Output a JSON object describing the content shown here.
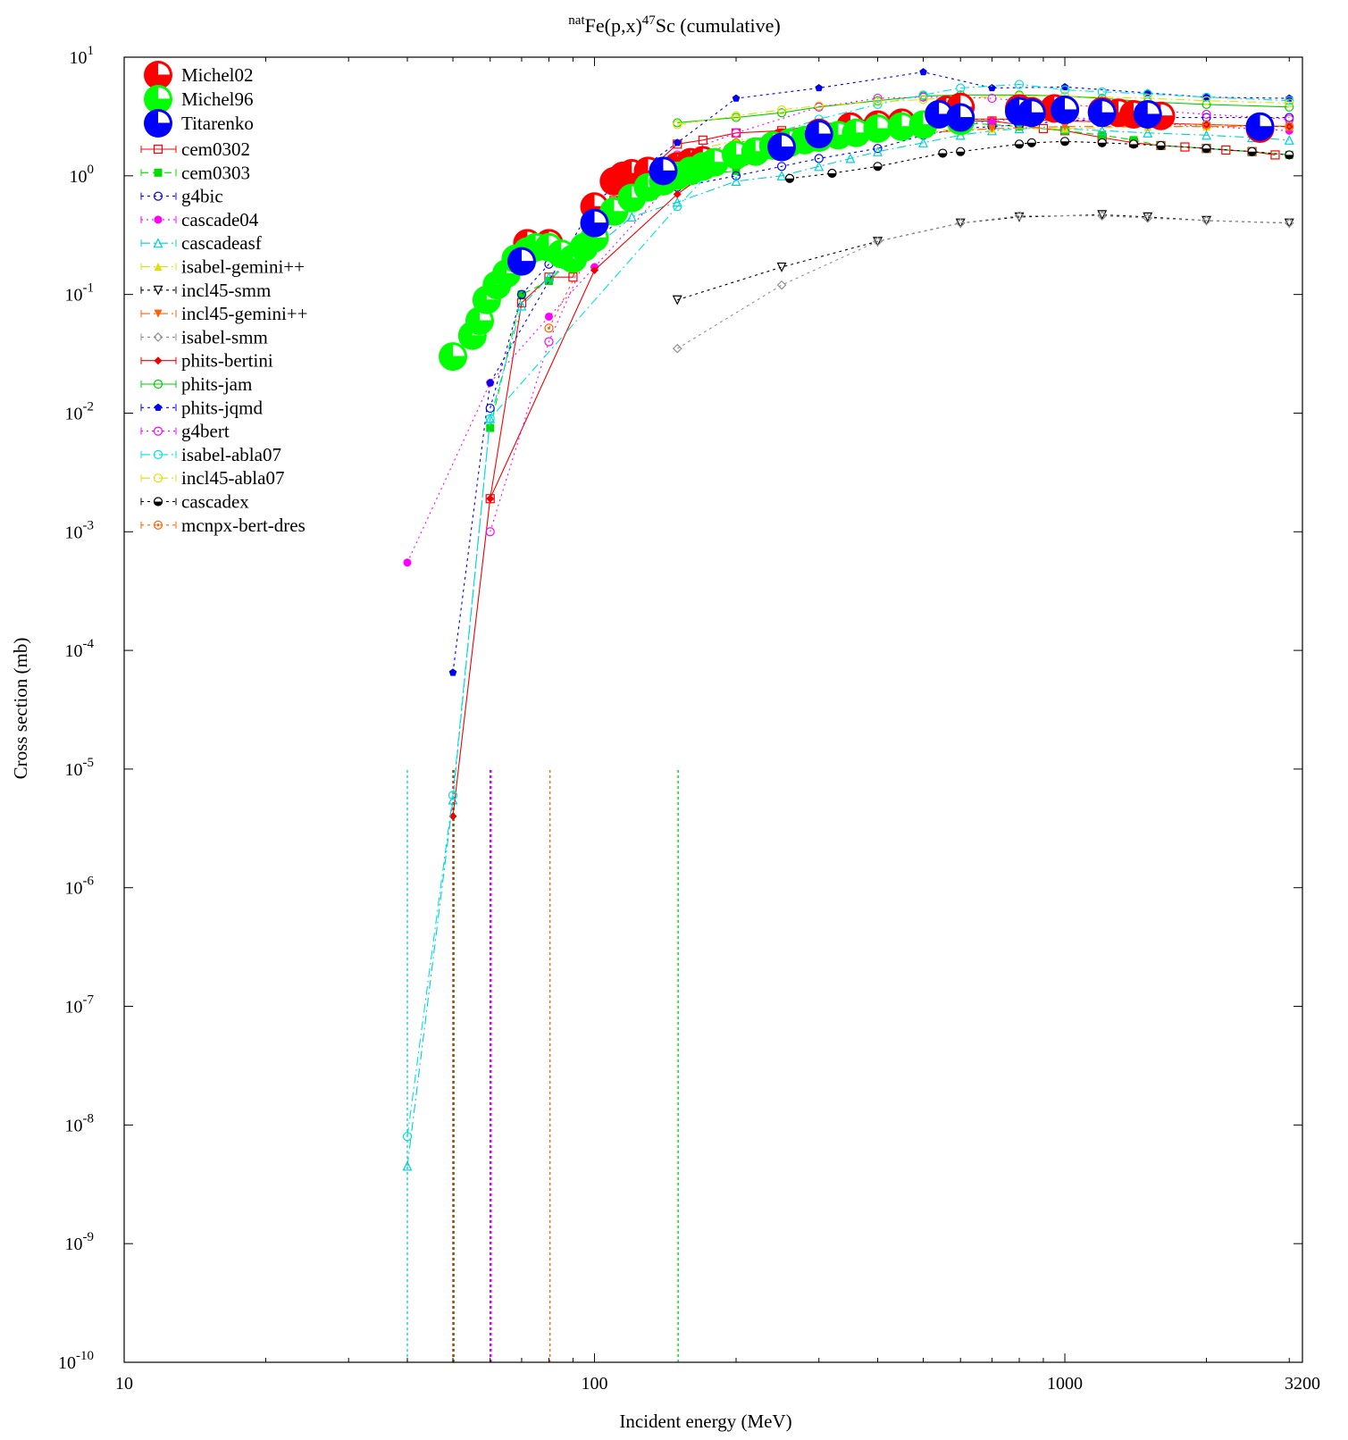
{
  "chart_data": {
    "type": "scatter",
    "title": {
      "pre": "nat",
      "main1": "Fe(p,x)",
      "sup": "47",
      "main2": "Sc (cumulative)"
    },
    "xlabel": "Incident energy (MeV)",
    "ylabel": "Cross section (mb)",
    "x_scale": "log",
    "y_scale": "log",
    "xlim": [
      10,
      3200
    ],
    "ylim": [
      1e-10,
      10
    ],
    "x_ticks": [
      {
        "value": 10,
        "label": "10"
      },
      {
        "value": 100,
        "label": "100"
      },
      {
        "value": 1000,
        "label": "1000"
      },
      {
        "value": 3200,
        "label": "3200"
      }
    ],
    "y_ticks": [
      {
        "value": 1e-10,
        "base": "10",
        "exp": "-10"
      },
      {
        "value": 1e-09,
        "base": "10",
        "exp": "-9"
      },
      {
        "value": 1e-08,
        "base": "10",
        "exp": "-8"
      },
      {
        "value": 1e-07,
        "base": "10",
        "exp": "-7"
      },
      {
        "value": 1e-06,
        "base": "10",
        "exp": "-6"
      },
      {
        "value": 1e-05,
        "base": "10",
        "exp": "-5"
      },
      {
        "value": 0.0001,
        "base": "10",
        "exp": "-4"
      },
      {
        "value": 0.001,
        "base": "10",
        "exp": "-3"
      },
      {
        "value": 0.01,
        "base": "10",
        "exp": "-2"
      },
      {
        "value": 0.1,
        "base": "10",
        "exp": "-1"
      },
      {
        "value": 1,
        "base": "10",
        "exp": "0"
      },
      {
        "value": 10,
        "base": "10",
        "exp": "1"
      }
    ],
    "grid": false,
    "legend_position": "top-left",
    "experimental": [
      {
        "name": "Michel02",
        "color": "#ff0000",
        "points": [
          [
            72,
            0.27
          ],
          [
            80,
            0.27
          ],
          [
            100,
            0.55
          ],
          [
            110,
            0.9
          ],
          [
            115,
            1.0
          ],
          [
            120,
            1.05
          ],
          [
            130,
            1.1
          ],
          [
            150,
            1.2
          ],
          [
            160,
            1.3
          ],
          [
            170,
            1.35
          ],
          [
            200,
            1.5
          ],
          [
            250,
            1.9
          ],
          [
            300,
            2.3
          ],
          [
            350,
            2.6
          ],
          [
            400,
            2.7
          ],
          [
            450,
            2.8
          ],
          [
            560,
            3.6
          ],
          [
            600,
            3.8
          ],
          [
            800,
            3.7
          ],
          [
            850,
            3.5
          ],
          [
            950,
            3.7
          ],
          [
            1000,
            3.6
          ],
          [
            1200,
            3.5
          ],
          [
            1300,
            3.4
          ],
          [
            1400,
            3.3
          ],
          [
            1600,
            3.2
          ],
          [
            2600,
            2.5
          ]
        ]
      },
      {
        "name": "Michel96",
        "color": "#00ff00",
        "points": [
          [
            50,
            0.03
          ],
          [
            55,
            0.045
          ],
          [
            57,
            0.06
          ],
          [
            59,
            0.09
          ],
          [
            62,
            0.12
          ],
          [
            65,
            0.15
          ],
          [
            68,
            0.2
          ],
          [
            72,
            0.23
          ],
          [
            75,
            0.25
          ],
          [
            80,
            0.25
          ],
          [
            85,
            0.22
          ],
          [
            90,
            0.2
          ],
          [
            95,
            0.25
          ],
          [
            100,
            0.3
          ],
          [
            110,
            0.5
          ],
          [
            120,
            0.65
          ],
          [
            130,
            0.8
          ],
          [
            140,
            0.9
          ],
          [
            150,
            1.0
          ],
          [
            160,
            1.1
          ],
          [
            170,
            1.2
          ],
          [
            180,
            1.3
          ],
          [
            200,
            1.5
          ],
          [
            220,
            1.6
          ],
          [
            240,
            1.8
          ],
          [
            260,
            1.9
          ],
          [
            280,
            2.0
          ],
          [
            300,
            2.1
          ],
          [
            330,
            2.2
          ],
          [
            360,
            2.3
          ],
          [
            400,
            2.5
          ],
          [
            450,
            2.6
          ],
          [
            500,
            2.7
          ],
          [
            600,
            2.9
          ]
        ]
      },
      {
        "name": "Titarenko",
        "color": "#0000ff",
        "points": [
          [
            70,
            0.19
          ],
          [
            100,
            0.4
          ],
          [
            140,
            1.1
          ],
          [
            250,
            1.75
          ],
          [
            300,
            2.25
          ],
          [
            540,
            3.3
          ],
          [
            600,
            3.1
          ],
          [
            800,
            3.5
          ],
          [
            850,
            3.4
          ],
          [
            1000,
            3.6
          ],
          [
            1200,
            3.4
          ],
          [
            1500,
            3.3
          ],
          [
            2600,
            2.6
          ]
        ]
      }
    ],
    "series": [
      {
        "name": "cem0302",
        "color": "#ff0000",
        "dash": "",
        "marker": "square-open",
        "x": [
          60,
          70,
          80,
          90,
          100,
          110,
          120,
          130,
          150,
          170,
          200,
          250,
          300,
          350,
          400,
          500,
          600,
          700,
          800,
          900,
          1000,
          1200,
          1400,
          1600,
          1800,
          2000,
          2200,
          2500,
          2800
        ],
        "y": [
          0.0019,
          0.085,
          0.14,
          0.14,
          0.55,
          0.62,
          0.9,
          1.1,
          1.85,
          2.0,
          2.3,
          2.4,
          2.7,
          2.9,
          3.0,
          3.0,
          2.9,
          2.9,
          2.7,
          2.5,
          2.4,
          2.1,
          1.9,
          1.8,
          1.75,
          1.7,
          1.65,
          1.6,
          1.5
        ]
      },
      {
        "name": "cem0303",
        "color": "#00dd00",
        "dash": "8,5",
        "marker": "square",
        "x": [
          60,
          70,
          80,
          100,
          120,
          140,
          160,
          200,
          250,
          300,
          400,
          500,
          600,
          700,
          800,
          1000,
          1200,
          1400,
          1600,
          2000,
          2500,
          3000
        ],
        "y": [
          0.0075,
          0.1,
          0.13,
          0.3,
          0.7,
          0.9,
          1.0,
          1.1,
          1.8,
          2.2,
          2.6,
          2.8,
          2.8,
          2.7,
          2.6,
          2.4,
          2.2,
          2.0,
          1.8,
          1.7,
          1.6,
          1.5
        ]
      },
      {
        "name": "g4bic",
        "color": "#0000ff",
        "dash": "3,4",
        "marker": "circle-open",
        "x": [
          60,
          70,
          80,
          100,
          120,
          150,
          200,
          250,
          300,
          400,
          500,
          600,
          700,
          800,
          1000,
          1200,
          1500,
          2000,
          3000
        ],
        "y": [
          0.011,
          0.1,
          0.18,
          0.25,
          0.6,
          0.8,
          1.0,
          1.2,
          1.4,
          1.7,
          2.2,
          2.5,
          2.6,
          2.7,
          2.9,
          3.0,
          3.1,
          3.1,
          3.1
        ]
      },
      {
        "name": "cascade04",
        "color": "#ff00ff",
        "dash": "2,4",
        "marker": "circle",
        "x": [
          40,
          60,
          80,
          100,
          150,
          200,
          250,
          300,
          400,
          500,
          600,
          700,
          800,
          1000,
          1200,
          1500,
          2000,
          2500,
          3000
        ],
        "y": [
          0.00055,
          0.018,
          0.065,
          0.17,
          1.0,
          1.6,
          1.8,
          1.9,
          2.2,
          2.6,
          2.7,
          2.9,
          3.0,
          3.1,
          3.0,
          2.8,
          2.6,
          2.5,
          2.4
        ]
      },
      {
        "name": "cascadeasf",
        "color": "#00d0d0",
        "dash": "10,4,2,4",
        "marker": "triangle-open",
        "x": [
          40,
          50,
          60,
          70,
          80,
          100,
          120,
          150,
          200,
          250,
          300,
          350,
          400,
          500,
          600,
          700,
          800,
          1000,
          1200,
          1500,
          2000,
          2500,
          3000
        ],
        "y": [
          4.5e-09,
          5.5e-06,
          0.009,
          0.08,
          0.14,
          0.25,
          0.45,
          0.6,
          0.9,
          1.0,
          1.2,
          1.4,
          1.6,
          1.9,
          2.2,
          2.4,
          2.5,
          2.5,
          2.4,
          2.3,
          2.2,
          2.1,
          2.0
        ]
      },
      {
        "name": "isabel-gemini++",
        "color": "#e0e000",
        "dash": "10,4,2,4",
        "marker": "triangle",
        "x": [
          150,
          200,
          300,
          400,
          500,
          700,
          1000,
          1500,
          2000,
          3000
        ],
        "y": [
          1.5,
          2.0,
          2.3,
          2.4,
          2.4,
          2.5,
          2.5,
          2.6,
          2.6,
          2.6
        ]
      },
      {
        "name": "incl45-smm",
        "color": "#000000",
        "dash": "3,4",
        "marker": "triangle-down-open",
        "x": [
          150,
          250,
          400,
          600,
          800,
          1200,
          1500,
          2000,
          3000
        ],
        "y": [
          0.09,
          0.17,
          0.28,
          0.4,
          0.45,
          0.47,
          0.45,
          0.42,
          0.4
        ]
      },
      {
        "name": "incl45-gemini++",
        "color": "#ff6000",
        "dash": "10,4,2,4",
        "marker": "triangle-down",
        "x": [
          150,
          200,
          300,
          400,
          500,
          700,
          1000,
          1500,
          2000,
          3000
        ],
        "y": [
          1.1,
          1.5,
          2.0,
          2.2,
          2.3,
          2.5,
          2.6,
          2.6,
          2.6,
          2.6
        ]
      },
      {
        "name": "isabel-smm",
        "color": "#909090",
        "dash": "3,4",
        "marker": "diamond-open",
        "x": [
          150,
          250,
          400,
          600,
          800,
          1200,
          1500,
          2000,
          3000
        ],
        "y": [
          0.035,
          0.12,
          0.28,
          0.4,
          0.46,
          0.46,
          0.44,
          0.42,
          0.4
        ]
      },
      {
        "name": "phits-bertini",
        "color": "#ee0000",
        "dash": "",
        "marker": "diamond",
        "x": [
          50,
          60,
          100,
          150,
          200,
          300,
          400,
          600,
          800,
          1000,
          1500,
          2000,
          3000
        ],
        "y": [
          4e-06,
          0.0019,
          0.16,
          0.7,
          1.6,
          2.2,
          2.6,
          3.0,
          3.0,
          2.9,
          2.8,
          2.7,
          2.6
        ]
      },
      {
        "name": "phits-jam",
        "color": "#00cc00",
        "dash": "",
        "marker": "circle-open",
        "x": [
          150,
          200,
          250,
          300,
          400,
          500,
          600,
          800,
          1000,
          1200,
          1500,
          2000,
          3000
        ],
        "y": [
          2.8,
          3.1,
          3.4,
          3.8,
          4.3,
          4.7,
          4.8,
          4.8,
          4.7,
          4.5,
          4.2,
          4.0,
          3.8
        ]
      },
      {
        "name": "phits-jqmd",
        "color": "#0000ee",
        "dash": "3,4",
        "marker": "pentagon",
        "x": [
          50,
          60,
          100,
          150,
          200,
          300,
          500,
          700,
          1000,
          1500,
          2000,
          3000
        ],
        "y": [
          6.5e-05,
          0.018,
          0.6,
          1.9,
          4.5,
          5.5,
          7.5,
          5.5,
          5.6,
          5.0,
          4.6,
          4.5
        ]
      },
      {
        "name": "g4bert",
        "color": "#ff00ff",
        "dash": "2,4",
        "marker": "circle-open",
        "x": [
          60,
          80,
          100,
          150,
          200,
          300,
          400,
          500,
          600,
          700,
          800,
          1000,
          1200,
          1500,
          2000,
          3000
        ],
        "y": [
          0.001,
          0.04,
          0.3,
          1.5,
          2.3,
          3.8,
          4.5,
          4.6,
          4.6,
          4.5,
          4.3,
          4.0,
          3.8,
          3.6,
          3.3,
          3.0
        ]
      },
      {
        "name": "isabel-abla07",
        "color": "#00e0e0",
        "dash": "10,4,2,4",
        "marker": "circle-open",
        "x": [
          40,
          50,
          60,
          150,
          200,
          300,
          400,
          500,
          600,
          800,
          1000,
          1200,
          1500,
          2000,
          3000
        ],
        "y": [
          8e-09,
          6e-06,
          0.009,
          0.55,
          1.8,
          3.0,
          4.0,
          4.8,
          5.5,
          5.9,
          5.3,
          5.1,
          4.9,
          4.6,
          4.3
        ]
      },
      {
        "name": "incl45-abla07",
        "color": "#e0e000",
        "dash": "10,4,2,4",
        "marker": "circle-open",
        "x": [
          150,
          200,
          250,
          300,
          400,
          500,
          600,
          800,
          1000,
          1500,
          2000,
          3000
        ],
        "y": [
          2.7,
          3.2,
          3.6,
          3.9,
          4.2,
          4.4,
          4.6,
          4.7,
          4.7,
          4.5,
          4.3,
          4.1
        ]
      },
      {
        "name": "cascadex",
        "color": "#000000",
        "dash": "3,4",
        "marker": "half-circle",
        "x": [
          260,
          320,
          400,
          550,
          600,
          800,
          850,
          1000,
          1200,
          1400,
          1600,
          2000,
          2500,
          3000
        ],
        "y": [
          0.95,
          1.05,
          1.2,
          1.55,
          1.6,
          1.85,
          1.9,
          1.95,
          1.9,
          1.85,
          1.8,
          1.7,
          1.6,
          1.5
        ]
      },
      {
        "name": "mcnpx-bert-dres",
        "color": "#ff6000",
        "dash": "3,4",
        "marker": "circle-open-dot",
        "x": [
          80,
          100,
          150,
          200,
          300,
          400,
          600,
          800,
          1000,
          1500,
          2000,
          3000
        ],
        "y": [
          0.052,
          0.3,
          1.3,
          1.9,
          2.5,
          2.8,
          3.0,
          3.0,
          2.9,
          2.8,
          2.7,
          2.6
        ]
      }
    ],
    "vertical_drops": [
      {
        "series": "cascadeasf",
        "x": 40,
        "color": "#00d0d0"
      },
      {
        "series": "cem0303",
        "x": 50,
        "color": "#00aa00"
      },
      {
        "series": "phits-bertini",
        "x": 50,
        "color": "#ee0000"
      },
      {
        "series": "g4bert",
        "x": 60,
        "color": "#ff00ff"
      },
      {
        "series": "cascade04",
        "x": 60,
        "color": "#9900cc"
      },
      {
        "series": "mcnpx-bert-dres",
        "x": 80,
        "color": "#ff6000"
      },
      {
        "series": "isabel-gemini++",
        "x": 150,
        "color": "#e0e000"
      },
      {
        "series": "cascadeasf",
        "x": 150,
        "color": "#00d0d0"
      }
    ]
  }
}
